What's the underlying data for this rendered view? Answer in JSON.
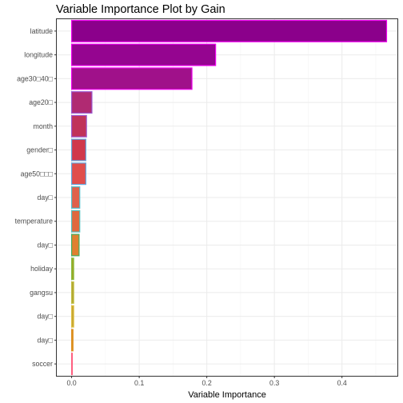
{
  "chart_data": {
    "type": "bar",
    "orientation": "horizontal",
    "title": "Variable Importance Plot by Gain",
    "xlabel": "Variable Importance",
    "ylabel": "",
    "categories": [
      "latitude",
      "longitude",
      "age30□40□",
      "age20□",
      "month",
      "gender□",
      "age50□□□",
      "day□",
      "temperature",
      "day□",
      "holiday",
      "gangsu",
      "day□",
      "day□",
      "soccer"
    ],
    "values": [
      0.466,
      0.213,
      0.178,
      0.03,
      0.022,
      0.021,
      0.021,
      0.012,
      0.012,
      0.011,
      0.003,
      0.003,
      0.003,
      0.002,
      0.001
    ],
    "xlim": [
      -0.022,
      0.482
    ],
    "xticks": [
      0.0,
      0.1,
      0.2,
      0.3,
      0.4
    ],
    "xtick_labels": [
      "0.0",
      "0.1",
      "0.2",
      "0.3",
      "0.4"
    ],
    "grid": true,
    "legend": "none",
    "colors": {
      "fill": [
        "#8b008b",
        "#950590",
        "#a0118a",
        "#b02a72",
        "#c0325a",
        "#d0384c",
        "#e04e4c",
        "#e0604a",
        "#e0683e",
        "#e08030",
        "#a0a020",
        "#b0a030",
        "#c0a030",
        "#d09020",
        "#e06060"
      ],
      "outline": [
        "#ee00ee",
        "#ee00ee",
        "#ee00ee",
        "#9b58d0",
        "#9b58d0",
        "#60a8e0",
        "#60a8e0",
        "#50c0d0",
        "#50c0c0",
        "#40b060",
        "#88c040",
        "#c0c040",
        "#e0c040",
        "#e09020",
        "#ff6080"
      ],
      "grid_major": "#ebebeb",
      "grid_minor": "#f4f4f4",
      "panel_border": "#333333"
    }
  }
}
